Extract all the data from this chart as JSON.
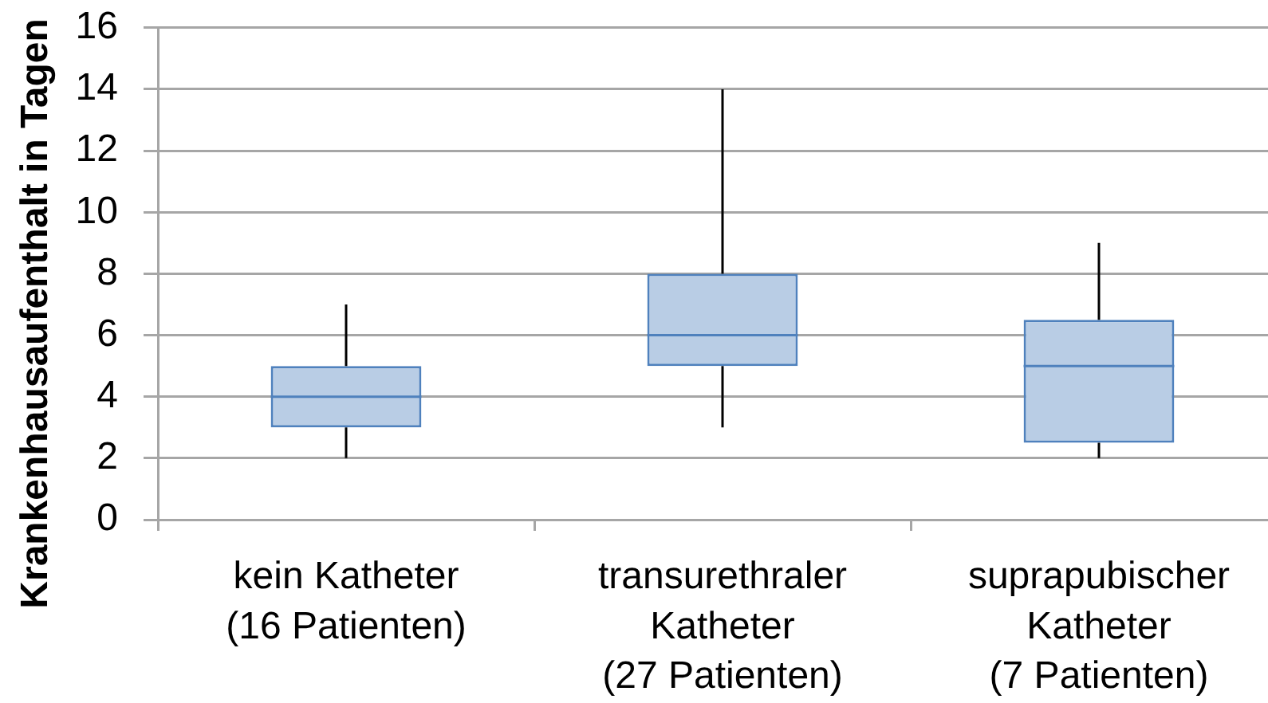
{
  "chart_data": {
    "type": "box",
    "ylabel": "Krankenhausaufenthalt in Tagen",
    "categories": [
      "kein Katheter\n(16 Patienten)",
      "transurethraler\nKatheter\n(27 Patienten)",
      "suprapubischer\nKatheter\n(7 Patienten)"
    ],
    "boxes": [
      {
        "low": 2,
        "q1": 3,
        "median": 4,
        "q3": 5,
        "high": 7
      },
      {
        "low": 3,
        "q1": 5,
        "median": 6,
        "q3": 8,
        "high": 14
      },
      {
        "low": 2,
        "q1": 2.5,
        "median": 5,
        "q3": 6.5,
        "high": 9
      }
    ],
    "color": "#4f81bd",
    "ylim": [
      0,
      16
    ],
    "yticks": [
      0,
      2,
      4,
      6,
      8,
      10,
      12,
      14,
      16
    ],
    "grid": "y"
  }
}
